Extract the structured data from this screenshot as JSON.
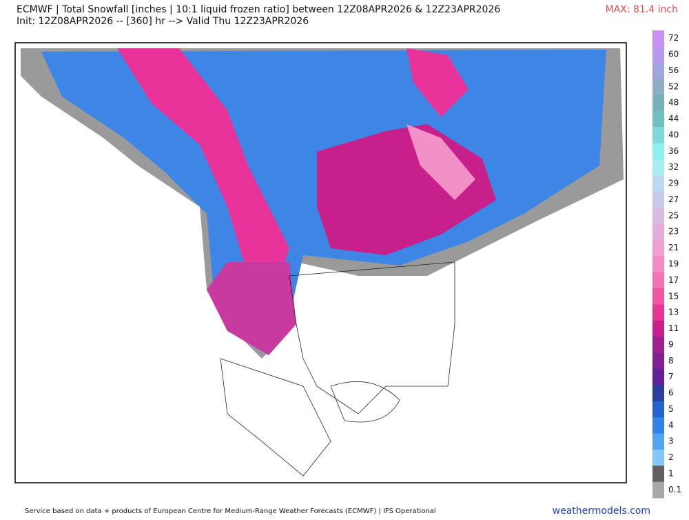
{
  "header": {
    "title": "ECMWF | Total Snowfall [inches | 10:1 liquid frozen ratio] between 12Z08APR2026 & 12Z23APR2026",
    "subtitle": "Init: 12Z08APR2026 -- [360] hr --> Valid Thu 12Z23APR2026",
    "max_label": "MAX: 81.4 inch"
  },
  "colorbar": [
    {
      "label": "72",
      "color": "#c890f2"
    },
    {
      "label": "60",
      "color": "#b49ae8"
    },
    {
      "label": "56",
      "color": "#a0a6dc"
    },
    {
      "label": "52",
      "color": "#8eaec8"
    },
    {
      "label": "48",
      "color": "#78b0bc"
    },
    {
      "label": "44",
      "color": "#70c0c0"
    },
    {
      "label": "40",
      "color": "#80d8d8"
    },
    {
      "label": "36",
      "color": "#8cf0f0"
    },
    {
      "label": "32",
      "color": "#a8eef4"
    },
    {
      "label": "29",
      "color": "#bcd8f2"
    },
    {
      "label": "27",
      "color": "#c8c8ec"
    },
    {
      "label": "25",
      "color": "#d8bce2"
    },
    {
      "label": "23",
      "color": "#e2acd8"
    },
    {
      "label": "21",
      "color": "#f0a0d0"
    },
    {
      "label": "19",
      "color": "#f28cc2"
    },
    {
      "label": "17",
      "color": "#f274b4"
    },
    {
      "label": "15",
      "color": "#f056a4"
    },
    {
      "label": "13",
      "color": "#e83492"
    },
    {
      "label": "11",
      "color": "#c8208a"
    },
    {
      "label": "9",
      "color": "#a0208c"
    },
    {
      "label": "8",
      "color": "#822092"
    },
    {
      "label": "7",
      "color": "#602098"
    },
    {
      "label": "6",
      "color": "#2a3ea0"
    },
    {
      "label": "5",
      "color": "#2462d0"
    },
    {
      "label": "4",
      "color": "#3482e8"
    },
    {
      "label": "3",
      "color": "#54a2f2"
    },
    {
      "label": "2",
      "color": "#84c8f8"
    },
    {
      "label": "1",
      "color": "#606060"
    },
    {
      "label": "0.1",
      "color": "#a8a8a8"
    }
  ],
  "footer": {
    "source": "Service based on data + products of European Centre for Medium-Range Weather Forecasts (ECMWF) | IFS Operational",
    "site": "weathermodels.com"
  }
}
